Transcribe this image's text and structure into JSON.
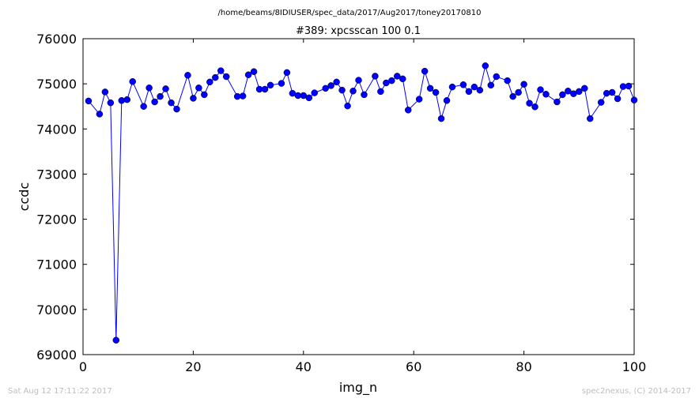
{
  "header": {
    "suptitle": "/home/beams/8IDIUSER/spec_data/2017/Aug2017/toney20170810"
  },
  "footer": {
    "timestamp": "Sat Aug 12 17:11:22 2017",
    "credit": "spec2nexus, (C) 2014-2017"
  },
  "chart_data": {
    "type": "line",
    "title": "#389: xpcsscan 100 0.1",
    "xlabel": "img_n",
    "ylabel": "ccdc",
    "xlim": [
      0,
      100
    ],
    "ylim": [
      69000,
      76000
    ],
    "xticks": [
      0,
      20,
      40,
      60,
      80,
      100
    ],
    "yticks": [
      69000,
      70000,
      71000,
      72000,
      73000,
      74000,
      75000,
      76000
    ],
    "grid": false,
    "line_color": "#0000ff",
    "marker": "circle",
    "series": [
      {
        "x": [
          1,
          3,
          4,
          5,
          6,
          7,
          8,
          9,
          11,
          12,
          13,
          14,
          15,
          16,
          17,
          19,
          20,
          21,
          22,
          23,
          24,
          25,
          26,
          28,
          29,
          30,
          31,
          32,
          33,
          34,
          36,
          37,
          38,
          39,
          40,
          41,
          42,
          44,
          45,
          46,
          47,
          48,
          49,
          50,
          51,
          53,
          54,
          55,
          56,
          57,
          58,
          59,
          61,
          62,
          63,
          64,
          65,
          66,
          67,
          69,
          70,
          71,
          72,
          73,
          74,
          75,
          77,
          78,
          79,
          80,
          81,
          82,
          83,
          84,
          86,
          87,
          88,
          89,
          90,
          91,
          92,
          94,
          95,
          96,
          97,
          98,
          99,
          100
        ],
        "y": [
          74620,
          74330,
          74820,
          74580,
          69320,
          74630,
          74650,
          75050,
          74500,
          74910,
          74600,
          74720,
          74890,
          74580,
          74440,
          75190,
          74680,
          74910,
          74760,
          75040,
          75140,
          75290,
          75160,
          74720,
          74730,
          75200,
          75270,
          74880,
          74880,
          74970,
          75010,
          75250,
          74790,
          74740,
          74740,
          74690,
          74800,
          74900,
          74960,
          75040,
          74860,
          74510,
          74840,
          75080,
          74760,
          75170,
          74830,
          75020,
          75070,
          75170,
          75110,
          74420,
          74660,
          75280,
          74900,
          74810,
          74230,
          74630,
          74930,
          74980,
          74830,
          74930,
          74860,
          75400,
          74970,
          75160,
          75070,
          74720,
          74810,
          74990,
          74570,
          74490,
          74870,
          74770,
          74600,
          74760,
          74840,
          74780,
          74830,
          74900,
          74230,
          74590,
          74790,
          74810,
          74670,
          74940,
          74950,
          74640
        ]
      }
    ]
  }
}
